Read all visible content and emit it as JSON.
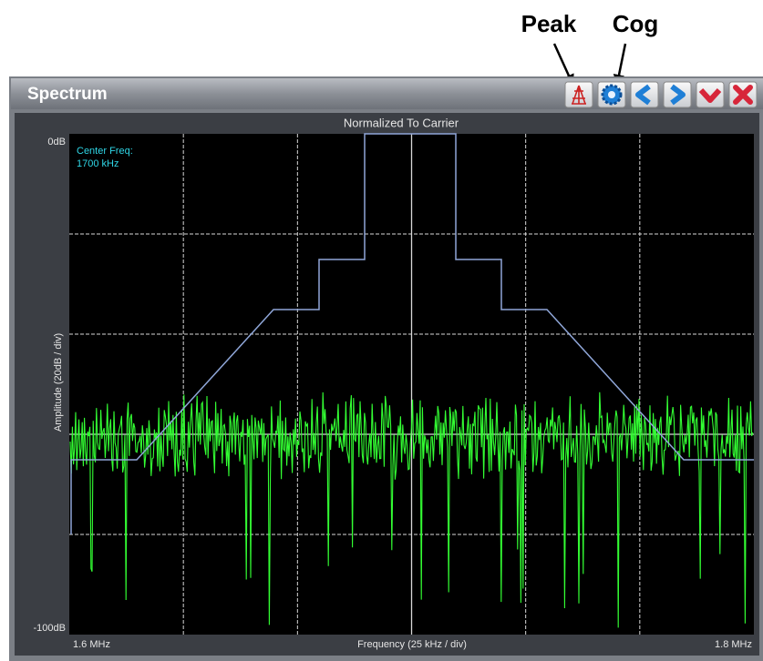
{
  "annotations": {
    "peak": "Peak",
    "cog": "Cog"
  },
  "window": {
    "title": "Spectrum"
  },
  "plot": {
    "title": "Normalized To Carrier",
    "y_top": "0dB",
    "y_bottom": "-100dB",
    "y_label": "Amplitude (20dB / div)",
    "x_left": "1.6 MHz",
    "x_right": "1.8 MHz",
    "x_label": "Frequency (25 kHz / div)",
    "center_freq_label": "Center Freq:",
    "center_freq_value": "1700 kHz"
  }
}
